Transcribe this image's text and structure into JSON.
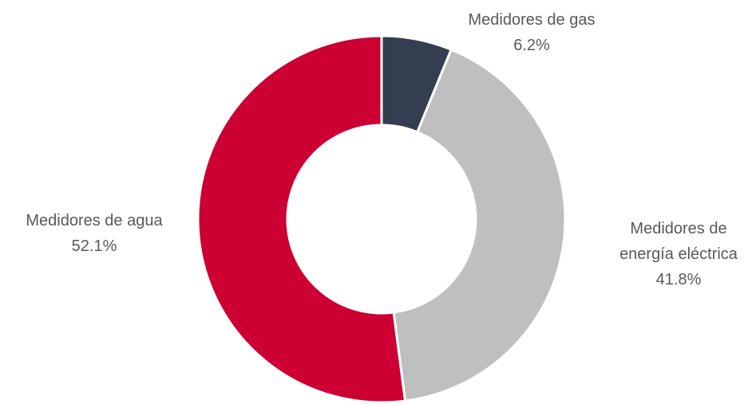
{
  "chart_data": {
    "type": "donut",
    "categories": [
      "Medidores de gas",
      "Medidores de energía eléctrica",
      "Medidores de agua"
    ],
    "values": [
      6.2,
      41.8,
      52.1
    ],
    "value_labels": [
      "6.2%",
      "41.8%",
      "52.1%"
    ],
    "colors": [
      "#333f50",
      "#bfbfbf",
      "#cc0033"
    ]
  }
}
